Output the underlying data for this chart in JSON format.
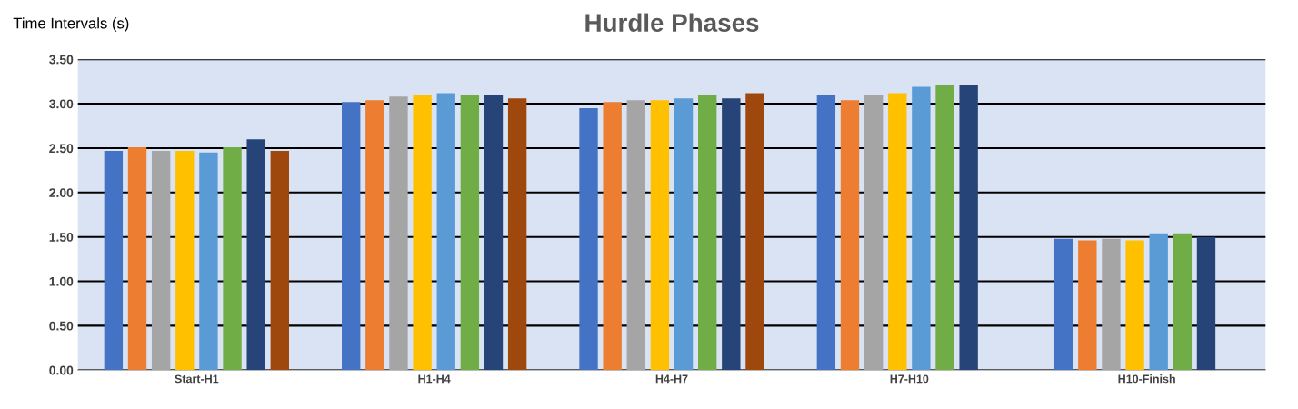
{
  "chart_data": {
    "type": "bar",
    "title": "Hurdle Phases",
    "ylabel": "Time Intervals (s)",
    "categories": [
      "Start-H1",
      "H1-H4",
      "H4-H7",
      "H7-H10",
      "H10-Finish"
    ],
    "series": [
      {
        "color": "#4472c4",
        "values": [
          2.47,
          3.02,
          2.95,
          3.1,
          1.48
        ]
      },
      {
        "color": "#ed7d31",
        "values": [
          2.51,
          3.04,
          3.02,
          3.04,
          1.46
        ]
      },
      {
        "color": "#a5a5a5",
        "values": [
          2.47,
          3.08,
          3.04,
          3.1,
          1.48
        ]
      },
      {
        "color": "#ffc000",
        "values": [
          2.47,
          3.1,
          3.04,
          3.12,
          1.46
        ]
      },
      {
        "color": "#5b9bd5",
        "values": [
          2.45,
          3.12,
          3.06,
          3.19,
          1.54
        ]
      },
      {
        "color": "#70ad47",
        "values": [
          2.51,
          3.1,
          3.1,
          3.21,
          1.54
        ]
      },
      {
        "color": "#264478",
        "values": [
          2.6,
          3.1,
          3.06,
          3.21,
          1.5
        ]
      },
      {
        "color": "#9e480e",
        "values": [
          2.47,
          3.06,
          3.12,
          null,
          null
        ]
      }
    ],
    "ylim": [
      0,
      3.5
    ],
    "yticks": [
      {
        "value": 0,
        "label": "0.00"
      },
      {
        "value": 0.5,
        "label": "0.50"
      },
      {
        "value": 1,
        "label": "1.00"
      },
      {
        "value": 1.5,
        "label": "1.50"
      },
      {
        "value": 2,
        "label": "2.00"
      },
      {
        "value": 2.5,
        "label": "2.50"
      },
      {
        "value": 3,
        "label": "3.00"
      },
      {
        "value": 3.5,
        "label": "3.50"
      }
    ],
    "grid": "y",
    "legend": false
  }
}
